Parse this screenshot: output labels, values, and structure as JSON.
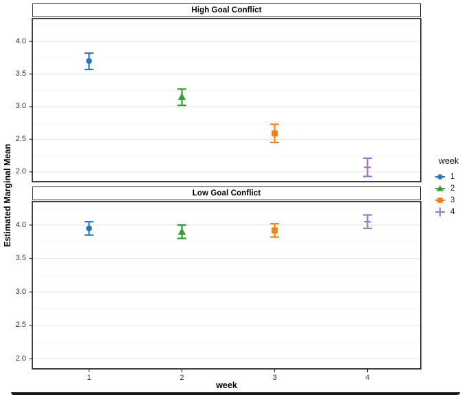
{
  "chart_data": {
    "type": "scatter",
    "xlabel": "week",
    "ylabel": "Estimated Marginal Mean",
    "x_categories": [
      "1",
      "2",
      "3",
      "4"
    ],
    "yticks": [
      4.0,
      3.5,
      3.0,
      2.5,
      2.0
    ],
    "ylim": [
      1.85,
      4.35
    ],
    "grid": {
      "major": [
        2.0,
        2.5,
        3.0,
        3.5,
        4.0
      ],
      "minor": [
        2.25,
        2.75,
        3.25,
        3.75,
        4.25
      ]
    },
    "frame_color": "#2b2b2b",
    "tick_label_color": "#333333",
    "legend": {
      "title": "week",
      "position": "right",
      "items": [
        {
          "label": "1",
          "color": "#2E75B6",
          "marker": "circle"
        },
        {
          "label": "2",
          "color": "#2CA02C",
          "marker": "triangle"
        },
        {
          "label": "3",
          "color": "#FF7F0E",
          "marker": "square"
        },
        {
          "label": "4",
          "color": "#9E77CE",
          "marker": "plus"
        }
      ]
    },
    "facets": [
      {
        "label": "High Goal Conflict",
        "points": [
          {
            "week": "1",
            "mean": 3.7,
            "lower": 3.57,
            "upper": 3.82
          },
          {
            "week": "2",
            "mean": 3.15,
            "lower": 3.02,
            "upper": 3.27
          },
          {
            "week": "3",
            "mean": 2.59,
            "lower": 2.45,
            "upper": 2.73
          },
          {
            "week": "4",
            "mean": 2.07,
            "lower": 1.93,
            "upper": 2.21
          }
        ]
      },
      {
        "label": "Low Goal Conflict",
        "points": [
          {
            "week": "1",
            "mean": 3.95,
            "lower": 3.85,
            "upper": 4.05
          },
          {
            "week": "2",
            "mean": 3.9,
            "lower": 3.8,
            "upper": 4.0
          },
          {
            "week": "3",
            "mean": 3.92,
            "lower": 3.82,
            "upper": 4.02
          },
          {
            "week": "4",
            "mean": 4.05,
            "lower": 3.95,
            "upper": 4.15
          }
        ]
      }
    ]
  }
}
